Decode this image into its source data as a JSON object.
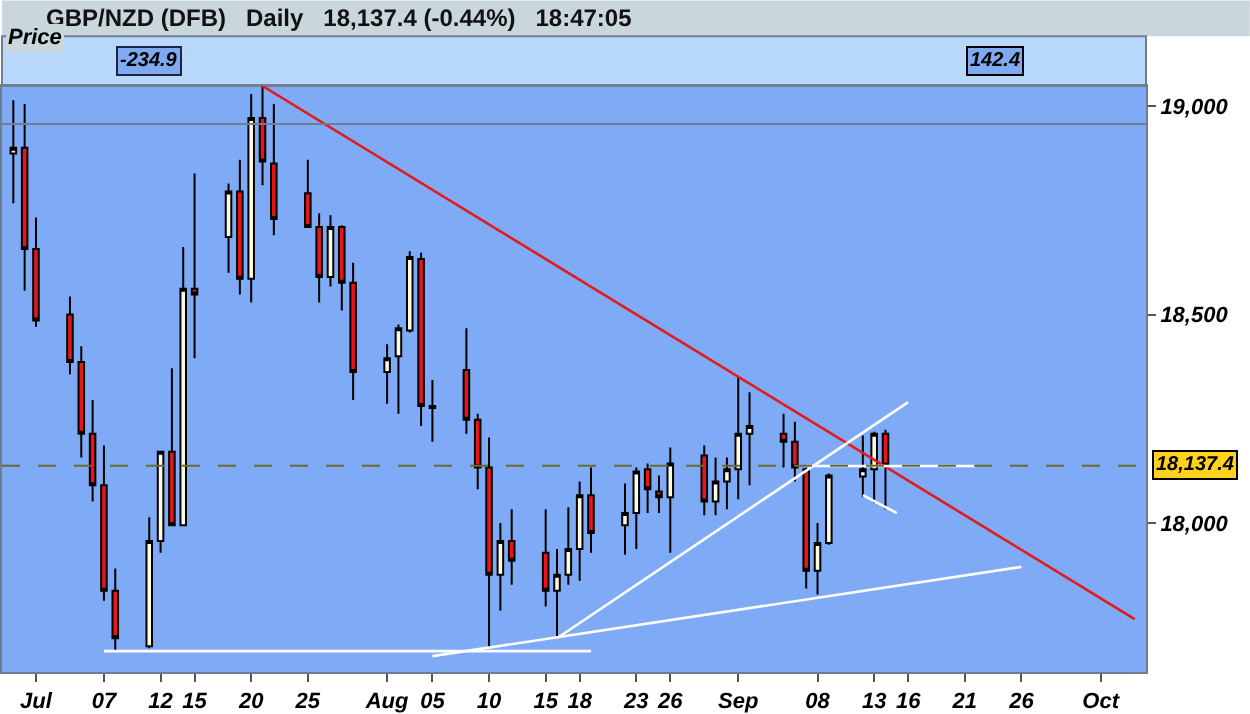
{
  "chart_data": {
    "type": "candlestick",
    "title": "GBP/NZD (DFB)   Daily   18,137.4 (-0.44%)   18:47:05",
    "x": [
      "--06-29",
      "--06-30",
      "--07-01",
      "--07-04",
      "--07-05",
      "--07-06",
      "--07-07",
      "--07-08",
      "--07-11",
      "--07-12",
      "--07-13",
      "--07-14",
      "--07-15",
      "--07-18",
      "--07-19",
      "--07-20",
      "--07-21",
      "--07-22",
      "--07-25",
      "--07-26",
      "--07-27",
      "--07-28",
      "--07-29",
      "--08-01",
      "--08-02",
      "--08-03",
      "--08-04",
      "--08-05",
      "--08-08",
      "--08-09",
      "--08-10",
      "--08-11",
      "--08-12",
      "--08-15",
      "--08-16",
      "--08-17",
      "--08-18",
      "--08-19",
      "--08-22",
      "--08-23",
      "--08-24",
      "--08-25",
      "--08-26",
      "--08-29",
      "--08-30",
      "--08-31",
      "--09-01",
      "--09-02",
      "--09-05",
      "--09-06",
      "--09-07",
      "--09-08",
      "--09-09",
      "--09-12",
      "--09-13",
      "--09-14"
    ],
    "ohlc": [
      [
        18886,
        19014,
        18767,
        18900
      ],
      [
        18900,
        19005,
        18557,
        18657
      ],
      [
        18657,
        18733,
        18471,
        18486
      ],
      [
        18500,
        18543,
        18357,
        18386
      ],
      [
        18386,
        18424,
        18157,
        18214
      ],
      [
        18214,
        18295,
        18052,
        18091
      ],
      [
        18091,
        18186,
        17814,
        17838
      ],
      [
        17838,
        17891,
        17695,
        17724
      ],
      [
        17705,
        18014,
        17700,
        17957
      ],
      [
        17957,
        18171,
        17929,
        18171
      ],
      [
        18171,
        18371,
        17995,
        17995
      ],
      [
        17995,
        18662,
        17995,
        18562
      ],
      [
        18562,
        18838,
        18395,
        18548
      ],
      [
        18686,
        18814,
        18600,
        18795
      ],
      [
        18795,
        18871,
        18548,
        18586
      ],
      [
        18586,
        19029,
        18529,
        18971
      ],
      [
        18971,
        19048,
        18810,
        18867
      ],
      [
        18862,
        19005,
        18690,
        18729
      ],
      [
        18791,
        18871,
        18710,
        18710
      ],
      [
        18710,
        18743,
        18529,
        18590
      ],
      [
        18590,
        18738,
        18567,
        18710
      ],
      [
        18710,
        18714,
        18510,
        18576
      ],
      [
        18576,
        18624,
        18295,
        18362
      ],
      [
        18362,
        18429,
        18286,
        18395
      ],
      [
        18400,
        18476,
        18262,
        18467
      ],
      [
        18462,
        18652,
        18457,
        18638
      ],
      [
        18633,
        18648,
        18233,
        18281
      ],
      [
        18281,
        18343,
        18195,
        18276
      ],
      [
        18367,
        18467,
        18214,
        18248
      ],
      [
        18248,
        18262,
        18081,
        18133
      ],
      [
        18133,
        18205,
        17700,
        17876
      ],
      [
        17876,
        18000,
        17790,
        17957
      ],
      [
        17957,
        18033,
        17852,
        17910
      ],
      [
        17929,
        18033,
        17800,
        17838
      ],
      [
        17838,
        17938,
        17724,
        17876
      ],
      [
        17876,
        18038,
        17852,
        17938
      ],
      [
        17938,
        18100,
        17862,
        18067
      ],
      [
        18067,
        18133,
        17929,
        17976
      ],
      [
        17995,
        18095,
        17924,
        18024
      ],
      [
        18024,
        18133,
        17938,
        18124
      ],
      [
        18129,
        18143,
        18024,
        18081
      ],
      [
        18076,
        18114,
        18024,
        18062
      ],
      [
        18062,
        18181,
        17929,
        18143
      ],
      [
        18162,
        18186,
        18019,
        18052
      ],
      [
        18052,
        18157,
        18019,
        18100
      ],
      [
        18100,
        18157,
        18033,
        18129
      ],
      [
        18129,
        18352,
        18057,
        18214
      ],
      [
        18214,
        18314,
        18091,
        18233
      ],
      [
        18214,
        18262,
        18133,
        18195
      ],
      [
        18195,
        18243,
        18100,
        18133
      ],
      [
        18129,
        18133,
        17843,
        17886
      ],
      [
        17886,
        18000,
        17829,
        17952
      ],
      [
        17952,
        18119,
        17948,
        18114
      ],
      [
        18112,
        18210,
        18062,
        18129
      ],
      [
        18129,
        18219,
        18048,
        18214
      ],
      [
        18214,
        18224,
        18033,
        18137.4
      ]
    ],
    "colors": [
      "#fffbe2",
      "#e8161b",
      "#e8161b",
      "#e8161b",
      "#e8161b",
      "#e8161b",
      "#e8161b",
      "#e8161b",
      "#fffbe2",
      "#fffbe2",
      "#e8161b",
      "#fffbe2",
      "#e8161b",
      "#fffbe2",
      "#e8161b",
      "#fffbe2",
      "#e8161b",
      "#e8161b",
      "#e8161b",
      "#e8161b",
      "#fffbe2",
      "#e8161b",
      "#e8161b",
      "#fffbe2",
      "#fffbe2",
      "#fffbe2",
      "#e8161b",
      "#000000",
      "#e8161b",
      "#e8161b",
      "#e8161b",
      "#fffbe2",
      "#e8161b",
      "#e8161b",
      "#fffbe2",
      "#fffbe2",
      "#fffbe2",
      "#e8161b",
      "#fffbe2",
      "#fffbe2",
      "#e8161b",
      "#e8161b",
      "#fffbe2",
      "#e8161b",
      "#fffbe2",
      "#fffbe2",
      "#fffbe2",
      "#fffbe2",
      "#e8161b",
      "#e8161b",
      "#e8161b",
      "#fffbe2",
      "#fffbe2",
      "#fffbe2",
      "#fffbe2",
      "#e8161b"
    ],
    "series": [
      {
        "type": "line",
        "color": "#e41a1c",
        "x": [
          "--07-21",
          "--10-06"
        ],
        "values": [
          19048,
          17770
        ]
      },
      {
        "type": "line",
        "color": "#ffffff",
        "x": [
          "--07-07",
          "--08-19"
        ],
        "values": [
          17693,
          17693
        ]
      },
      {
        "type": "line",
        "color": "#ffffff",
        "x": [
          "--08-05",
          "--09-26"
        ],
        "values": [
          17681,
          17895
        ]
      },
      {
        "type": "line",
        "color": "#ffffff",
        "x": [
          "--08-16",
          "--09-16"
        ],
        "values": [
          17724,
          18290
        ]
      },
      {
        "type": "line",
        "color": "#ffffff",
        "x": [
          "--09-12",
          "--09-15"
        ],
        "values": [
          18067,
          18024
        ]
      },
      {
        "type": "line",
        "color": "#ffffff",
        "x": [
          "--09-07",
          "--09-22"
        ],
        "values": [
          18137,
          18137
        ]
      }
    ],
    "xlim": [
      "--06-28",
      "--10-07"
    ],
    "xticks": [
      {
        "value": "--07-01",
        "label": "Jul"
      },
      {
        "value": "--07-07",
        "label": "07"
      },
      {
        "value": "--07-12",
        "label": "12"
      },
      {
        "value": "--07-15",
        "label": "15"
      },
      {
        "value": "--07-20",
        "label": "20"
      },
      {
        "value": "--07-25",
        "label": "25"
      },
      {
        "value": "--08-01",
        "label": "Aug"
      },
      {
        "value": "--08-05",
        "label": "05"
      },
      {
        "value": "--08-10",
        "label": "10"
      },
      {
        "value": "--08-15",
        "label": "15"
      },
      {
        "value": "--08-18",
        "label": "18"
      },
      {
        "value": "--08-23",
        "label": "23"
      },
      {
        "value": "--08-26",
        "label": "26"
      },
      {
        "value": "--09-01",
        "label": "Sep"
      },
      {
        "value": "--09-08",
        "label": "08"
      },
      {
        "value": "--09-13",
        "label": "13"
      },
      {
        "value": "--09-16",
        "label": "16"
      },
      {
        "value": "--09-21",
        "label": "21"
      },
      {
        "value": "--09-26",
        "label": "26"
      },
      {
        "value": "--10-03",
        "label": "Oct"
      }
    ],
    "ylim": [
      17643,
      19048
    ],
    "yticks": [
      {
        "value": 18000,
        "label": "18,000"
      },
      {
        "value": 18500,
        "label": "18,500"
      },
      {
        "value": 19000,
        "label": "19,000"
      }
    ],
    "ref_lines": [
      {
        "axis": "y",
        "value": 18137.4,
        "label": "18,137.4",
        "color": "#6b6b2f",
        "line_style": "dashed"
      },
      {
        "axis": "y",
        "value": 18957,
        "color": "#6f7f90",
        "line_style": "solid"
      }
    ],
    "annotations": [
      "Price",
      "-234.9",
      "142.4"
    ],
    "grid": false
  }
}
